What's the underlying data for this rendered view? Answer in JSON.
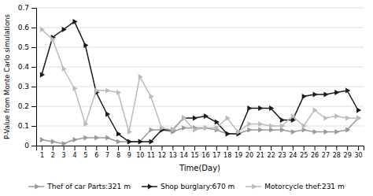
{
  "chart_data": {
    "type": "line",
    "x": [
      1,
      2,
      3,
      4,
      5,
      6,
      7,
      8,
      9,
      10,
      11,
      12,
      13,
      14,
      15,
      16,
      17,
      18,
      19,
      20,
      21,
      22,
      23,
      24,
      25,
      26,
      27,
      28,
      29,
      30
    ],
    "series": [
      {
        "name": "Thef of car Parts:321 m",
        "color": "#999999",
        "marker": "triangle-right",
        "values": [
          0.03,
          0.02,
          0.01,
          0.03,
          0.04,
          0.04,
          0.04,
          0.02,
          0.02,
          0.02,
          0.08,
          0.08,
          0.07,
          0.09,
          0.09,
          0.09,
          0.08,
          0.06,
          0.06,
          0.08,
          0.08,
          0.08,
          0.08,
          0.07,
          0.08,
          0.07,
          0.07,
          0.07,
          0.08,
          0.14
        ]
      },
      {
        "name": "Shop burglary:670 m",
        "color": "#1a1a1a",
        "marker": "triangle-right",
        "values": [
          0.36,
          0.55,
          0.59,
          0.63,
          0.51,
          0.27,
          0.16,
          0.06,
          0.02,
          0.02,
          0.02,
          0.08,
          0.08,
          0.14,
          0.14,
          0.15,
          0.12,
          0.06,
          0.06,
          0.19,
          0.19,
          0.19,
          0.13,
          0.13,
          0.25,
          0.26,
          0.26,
          0.27,
          0.28,
          0.18
        ]
      },
      {
        "name": "Motorcycle thef:231 m",
        "color": "#bbbbbb",
        "marker": "triangle-right",
        "values": [
          0.59,
          0.54,
          0.39,
          0.29,
          0.11,
          0.28,
          0.28,
          0.27,
          0.07,
          0.35,
          0.25,
          0.09,
          0.08,
          0.14,
          0.08,
          0.09,
          0.09,
          0.14,
          0.07,
          0.11,
          0.11,
          0.1,
          0.1,
          0.15,
          0.1,
          0.18,
          0.14,
          0.15,
          0.14,
          0.14
        ]
      }
    ],
    "xlabel": "Time(Day)",
    "ylabel": "P-Value from Monte Carlo simulations",
    "xlim": [
      0.5,
      30.5
    ],
    "xticks": [
      1,
      2,
      3,
      4,
      5,
      6,
      7,
      8,
      9,
      10,
      11,
      12,
      13,
      14,
      15,
      16,
      17,
      18,
      19,
      20,
      21,
      22,
      23,
      24,
      25,
      26,
      27,
      28,
      29,
      30
    ],
    "ylim": [
      0,
      0.7
    ],
    "yticks": [
      0.0,
      0.1,
      0.2,
      0.3,
      0.4,
      0.5,
      0.6,
      0.7
    ],
    "grid": true,
    "legend": "bottom"
  }
}
